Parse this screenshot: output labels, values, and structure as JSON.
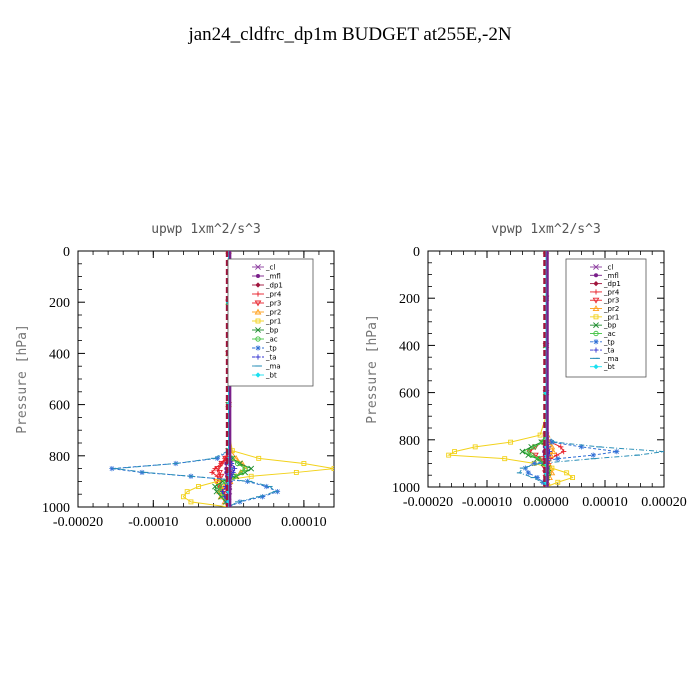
{
  "figure": {
    "title": "jan24_cldfrc_dp1m  BUDGET at255E,-2N"
  },
  "legend_entries": [
    {
      "name": "_cl",
      "color": "#8b3a9e",
      "marker": "x"
    },
    {
      "name": "_mfl",
      "color": "#7a1f8a",
      "marker": "filled-circle"
    },
    {
      "name": "_dp1",
      "color": "#a0143c",
      "marker": "filled-diamond"
    },
    {
      "name": "_pr4",
      "color": "#e8202a",
      "marker": "plus"
    },
    {
      "name": "_pr3",
      "color": "#e8202a",
      "marker": "tri-down"
    },
    {
      "name": "_pr2",
      "color": "#ff9f1a",
      "marker": "tri-up"
    },
    {
      "name": "_pr1",
      "color": "#f2d21b",
      "marker": "square"
    },
    {
      "name": "_bp",
      "color": "#1e8c2e",
      "marker": "x"
    },
    {
      "name": "_ac",
      "color": "#43c443",
      "marker": "circle"
    },
    {
      "name": "_tp",
      "color": "#2f6fd6",
      "marker": "star"
    },
    {
      "name": "_ta",
      "color": "#3232d0",
      "marker": "plus"
    },
    {
      "name": "_ma",
      "color": "#2a8fb8",
      "marker": "dash"
    },
    {
      "name": "_bt",
      "color": "#19e0f0",
      "marker": "filled-diamond"
    }
  ],
  "chart_data": [
    {
      "type": "line",
      "title": "upwp   1xm^2/s^3",
      "ylabel": "Pressure [hPa]",
      "xlabel": "",
      "xlim": [
        -0.0002,
        0.00014
      ],
      "ylim": [
        1000,
        0
      ],
      "y_inverted": true,
      "xticks": [
        -0.0002,
        -0.0001,
        0.0,
        0.0001
      ],
      "xtick_labels": [
        "-0.00020",
        "-0.00010",
        "0.00000",
        "0.00010"
      ],
      "yticks": [
        0,
        200,
        400,
        600,
        800,
        1000
      ],
      "ytick_labels": [
        "0",
        "200",
        "400",
        "600",
        "800",
        "1000"
      ],
      "legend_position": "top-right",
      "pressure": [
        0,
        100,
        200,
        300,
        400,
        500,
        600,
        700,
        780,
        810,
        830,
        850,
        865,
        880,
        900,
        920,
        940,
        960,
        980,
        1000
      ],
      "series": [
        {
          "name": "_cl",
          "values": [
            0,
            0,
            0,
            0,
            0,
            0,
            0,
            0,
            0,
            2e-06,
            3e-06,
            4e-06,
            3e-06,
            2e-06,
            2e-06,
            1e-06,
            1e-06,
            0,
            0,
            0
          ]
        },
        {
          "name": "_mfl",
          "values": [
            0,
            0,
            0,
            0,
            0,
            0,
            0,
            0,
            0,
            -2e-06,
            -3e-06,
            -3e-06,
            -3e-06,
            -2e-06,
            -2e-06,
            -1e-06,
            -1e-06,
            0,
            0,
            0
          ]
        },
        {
          "name": "_dp1",
          "values": [
            0,
            0,
            0,
            0,
            0,
            0,
            0,
            0,
            0,
            1e-06,
            2e-06,
            2e-06,
            2e-06,
            1e-06,
            1e-06,
            1e-06,
            0,
            0,
            0,
            0
          ]
        },
        {
          "name": "_pr4",
          "values": [
            0,
            0,
            0,
            0,
            0,
            0,
            0,
            0,
            0,
            -5e-06,
            -1e-05,
            -1.8e-05,
            -2.2e-05,
            -1.5e-05,
            -1e-05,
            -1.2e-05,
            -8e-06,
            -4e-06,
            -2e-06,
            0
          ]
        },
        {
          "name": "_pr3",
          "values": [
            0,
            0,
            0,
            0,
            0,
            0,
            0,
            0,
            0,
            -4e-06,
            -9e-06,
            -1.4e-05,
            -1.2e-05,
            -1e-05,
            -1.6e-05,
            -1.2e-05,
            -6e-06,
            -3e-06,
            -1e-06,
            0
          ]
        },
        {
          "name": "_pr2",
          "values": [
            0,
            0,
            0,
            0,
            0,
            0,
            0,
            0,
            3e-06,
            1e-05,
            1.8e-05,
            2.2e-05,
            1.6e-05,
            1e-05,
            2e-06,
            -6e-06,
            -1.2e-05,
            -1e-05,
            -5e-06,
            0
          ]
        },
        {
          "name": "_pr1",
          "values": [
            0,
            0,
            0,
            0,
            0,
            0,
            0,
            0,
            5e-06,
            4e-05,
            0.0001,
            0.00014,
            9e-05,
            3e-05,
            -1.5e-05,
            -4e-05,
            -5.5e-05,
            -6e-05,
            -5e-05,
            0
          ]
        },
        {
          "name": "_bp",
          "values": [
            0,
            0,
            0,
            0,
            0,
            0,
            0,
            0,
            0,
            5e-06,
            1.5e-05,
            3e-05,
            2.2e-05,
            1e-05,
            -8e-06,
            -1.8e-05,
            -1.6e-05,
            -1e-05,
            -4e-06,
            0
          ]
        },
        {
          "name": "_ac",
          "values": [
            0,
            0,
            0,
            0,
            0,
            0,
            0,
            0,
            0,
            4e-06,
            1.2e-05,
            2.2e-05,
            1.8e-05,
            8e-06,
            -4e-06,
            -1.2e-05,
            -1e-05,
            -6e-06,
            -2e-06,
            0
          ]
        },
        {
          "name": "_tp",
          "values": [
            0,
            0,
            0,
            0,
            0,
            0,
            0,
            0,
            0,
            -1.5e-05,
            -7e-05,
            -0.000155,
            -0.000115,
            -5e-05,
            2.5e-05,
            5e-05,
            6.5e-05,
            4.5e-05,
            1.5e-05,
            0
          ]
        },
        {
          "name": "_ta",
          "values": [
            0,
            0,
            0,
            0,
            0,
            0,
            0,
            0,
            0,
            2e-06,
            4e-06,
            8e-06,
            6e-06,
            4e-06,
            2e-06,
            -4e-06,
            -8e-06,
            -5e-06,
            -2e-06,
            0
          ]
        },
        {
          "name": "_ma",
          "values": [
            0,
            0,
            0,
            0,
            0,
            0,
            0,
            0,
            0,
            -2e-05,
            -7e-05,
            -0.00015,
            -0.00011,
            -5e-05,
            2.8e-05,
            5.5e-05,
            6.2e-05,
            4e-05,
            1.2e-05,
            0
          ]
        },
        {
          "name": "_bt",
          "values": [
            0,
            0,
            0,
            0,
            0,
            0,
            0,
            0,
            0,
            1e-06,
            1e-06,
            2e-06,
            1e-06,
            1e-06,
            0,
            0,
            0,
            0,
            0,
            0
          ]
        }
      ]
    },
    {
      "type": "line",
      "title": "vpwp   1xm^2/s^3",
      "ylabel": "Pressure [hPa]",
      "xlabel": "",
      "xlim": [
        -0.0002,
        0.0002
      ],
      "ylim": [
        1000,
        0
      ],
      "y_inverted": true,
      "xticks": [
        -0.0002,
        -0.0001,
        0.0,
        0.0001,
        0.0002
      ],
      "xtick_labels": [
        "-0.00020",
        "-0.00010",
        "0.00000",
        "0.00010",
        "0.00020"
      ],
      "yticks": [
        0,
        200,
        400,
        600,
        800,
        1000
      ],
      "ytick_labels": [
        "0",
        "200",
        "400",
        "600",
        "800",
        "1000"
      ],
      "legend_position": "top-right",
      "pressure": [
        0,
        100,
        200,
        300,
        400,
        500,
        600,
        700,
        780,
        810,
        830,
        850,
        865,
        880,
        900,
        920,
        940,
        960,
        980,
        1000
      ],
      "series": [
        {
          "name": "_cl",
          "values": [
            0,
            0,
            0,
            0,
            0,
            0,
            0,
            0,
            0,
            1e-06,
            2e-06,
            3e-06,
            2e-06,
            2e-06,
            1e-06,
            1e-06,
            0,
            0,
            0,
            0
          ]
        },
        {
          "name": "_mfl",
          "values": [
            0,
            0,
            0,
            0,
            0,
            0,
            0,
            0,
            0,
            -1e-06,
            -2e-06,
            -3e-06,
            -2e-06,
            -2e-06,
            -1e-06,
            -1e-06,
            0,
            0,
            0,
            0
          ]
        },
        {
          "name": "_dp1",
          "values": [
            0,
            0,
            0,
            0,
            0,
            0,
            0,
            0,
            0,
            1e-06,
            1e-06,
            2e-06,
            1e-06,
            1e-06,
            1e-06,
            0,
            0,
            0,
            0,
            0
          ]
        },
        {
          "name": "_pr4",
          "values": [
            0,
            0,
            0,
            0,
            0,
            0,
            0,
            0,
            0,
            8e-06,
            2.5e-05,
            3e-05,
            1.8e-05,
            8e-06,
            5e-06,
            3e-06,
            2e-06,
            1e-06,
            0,
            0
          ]
        },
        {
          "name": "_pr3",
          "values": [
            0,
            0,
            0,
            0,
            0,
            0,
            0,
            0,
            0,
            -6e-06,
            -1.8e-05,
            -2.8e-05,
            -1.8e-05,
            -8e-06,
            -4e-06,
            -2e-06,
            -1e-06,
            0,
            0,
            0
          ]
        },
        {
          "name": "_pr2",
          "values": [
            0,
            0,
            0,
            0,
            0,
            0,
            0,
            0,
            2e-06,
            5e-06,
            1e-05,
            1.2e-05,
            8e-06,
            4e-06,
            4e-06,
            8e-06,
            1e-05,
            6e-06,
            2e-06,
            0
          ]
        },
        {
          "name": "_pr1",
          "values": [
            0,
            0,
            0,
            0,
            0,
            0,
            0,
            0,
            -1e-05,
            -6e-05,
            -0.00012,
            -0.000155,
            -0.000165,
            -7e-05,
            -2e-05,
            1e-05,
            3.5e-05,
            4.5e-05,
            2e-05,
            0
          ]
        },
        {
          "name": "_bp",
          "values": [
            0,
            0,
            0,
            0,
            0,
            0,
            0,
            0,
            0,
            -8e-06,
            -2.5e-05,
            -4e-05,
            -3e-05,
            -1.5e-05,
            -4e-06,
            3e-06,
            4e-06,
            2e-06,
            0,
            0
          ]
        },
        {
          "name": "_ac",
          "values": [
            0,
            0,
            0,
            0,
            0,
            0,
            0,
            0,
            0,
            -6e-06,
            -2e-05,
            -3.2e-05,
            -2.4e-05,
            -1.2e-05,
            -4e-06,
            2e-06,
            3e-06,
            1e-06,
            0,
            0
          ]
        },
        {
          "name": "_tp",
          "values": [
            0,
            0,
            0,
            0,
            0,
            0,
            0,
            0,
            0,
            1e-05,
            6e-05,
            0.00012,
            8e-05,
            2e-05,
            -2e-05,
            -3.5e-05,
            -3e-05,
            -1.5e-05,
            -5e-06,
            0
          ]
        },
        {
          "name": "_ta",
          "values": [
            0,
            0,
            0,
            0,
            0,
            0,
            0,
            0,
            0,
            2e-06,
            4e-06,
            6e-06,
            5e-06,
            3e-06,
            2e-06,
            2e-06,
            1e-06,
            0,
            0,
            0
          ]
        },
        {
          "name": "_ma",
          "values": [
            0,
            0,
            0,
            0,
            0,
            0,
            0,
            0,
            0,
            1.5e-05,
            9e-05,
            0.0002,
            0.000155,
            8e-05,
            -1e-05,
            -4e-05,
            -4.5e-05,
            -2.2e-05,
            -6e-06,
            0
          ]
        },
        {
          "name": "_bt",
          "values": [
            0,
            0,
            0,
            0,
            0,
            0,
            0,
            0,
            0,
            0,
            1e-06,
            1e-06,
            1e-06,
            0,
            0,
            0,
            0,
            0,
            0,
            0
          ]
        }
      ]
    }
  ]
}
